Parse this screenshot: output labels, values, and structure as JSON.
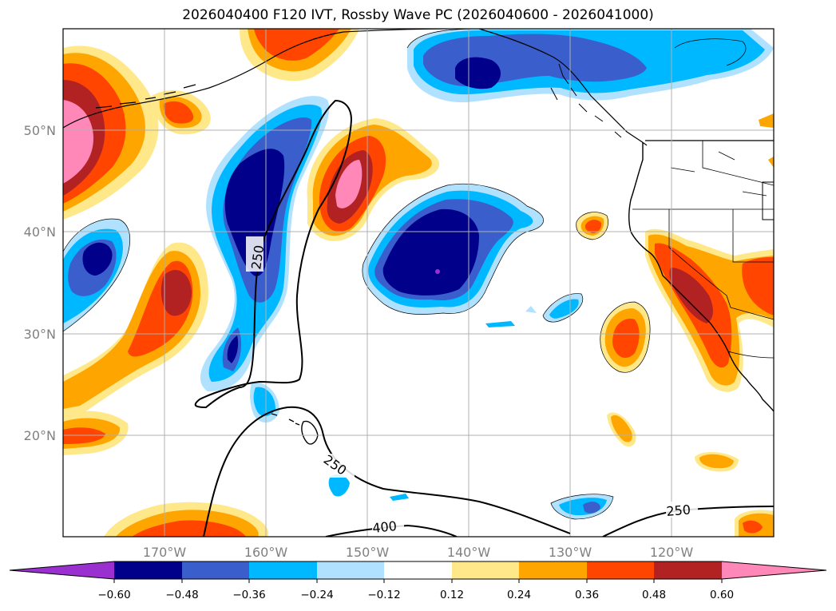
{
  "title": "2026040400 F120 IVT, Rossby Wave PC (2026040600 - 2026041000)",
  "axes": {
    "lon_labels": [
      "170°W",
      "160°W",
      "150°W",
      "140°W",
      "130°W",
      "120°W"
    ],
    "lat_labels": [
      "50°N",
      "40°N",
      "30°N",
      "20°N"
    ],
    "extent": {
      "lon_min": -180,
      "lon_max": -110,
      "lat_min": 10,
      "lat_max": 60
    },
    "gridlines": true
  },
  "colorbar": {
    "ticks": [
      "−0.60",
      "−0.48",
      "−0.36",
      "−0.24",
      "−0.12",
      "0.12",
      "0.24",
      "0.36",
      "0.48",
      "0.60"
    ],
    "colors": [
      "#9b30d0",
      "#00008b",
      "#3a5fcd",
      "#00b8ff",
      "#b0e2ff",
      "#ffffff",
      "#ffe88a",
      "#ffa500",
      "#ff4500",
      "#b22222",
      "#ff88b8"
    ],
    "extend": "both"
  },
  "contour_labels": [
    "250",
    "250",
    "250",
    "400"
  ],
  "colors": {
    "land": "#ffffff",
    "grid": "#b0b0b0",
    "coast": "#000000"
  }
}
